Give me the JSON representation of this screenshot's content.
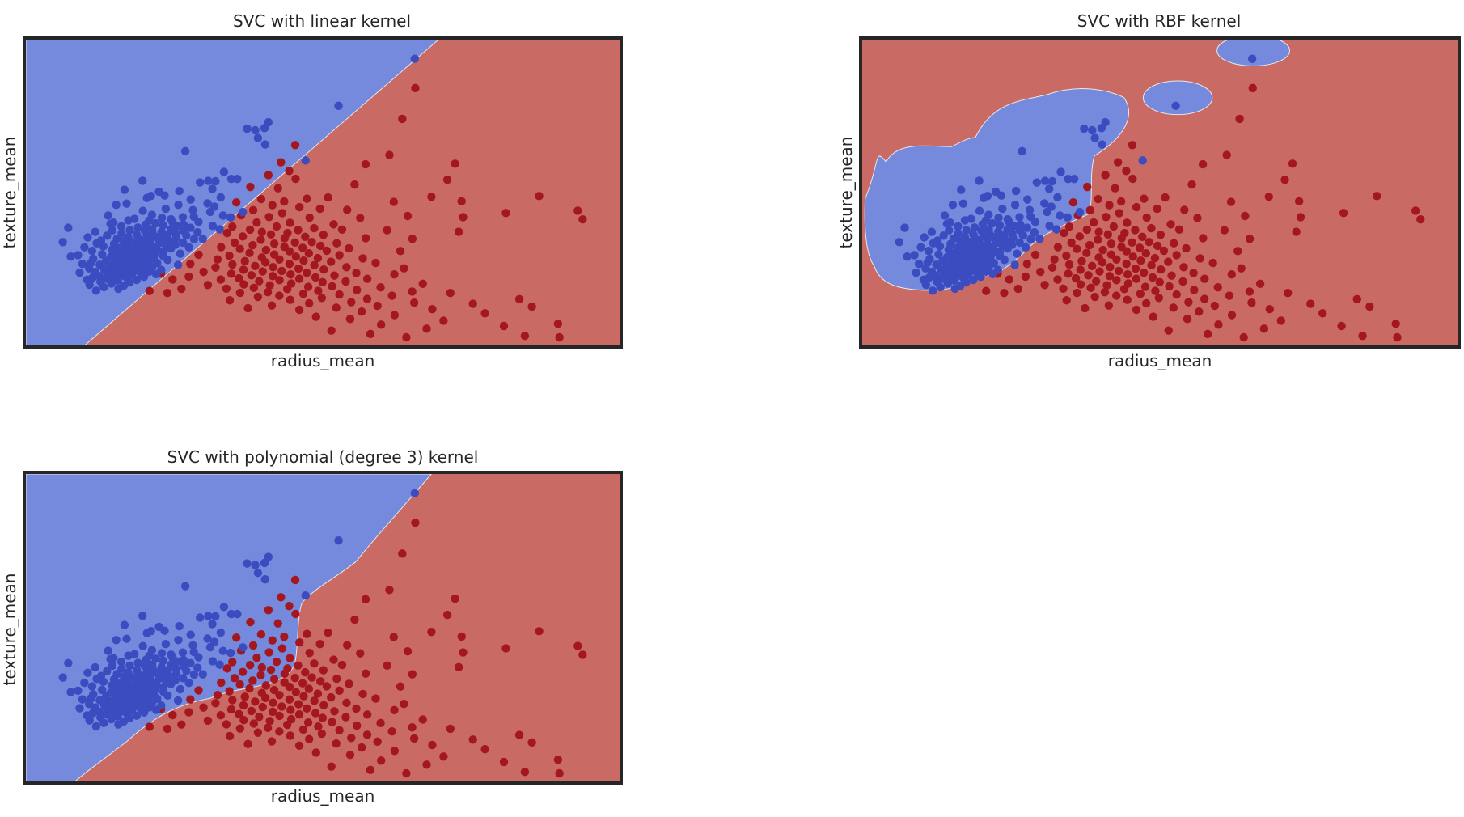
{
  "colors": {
    "blue_region": "#7589dd",
    "red_region": "#c96b64",
    "blue_point": "#3b4cc0",
    "red_point": "#a4171e",
    "frame": "#262626"
  },
  "chart_data": [
    {
      "type": "scatter",
      "title": "SVC with linear kernel",
      "xlabel": "radius_mean",
      "ylabel": "texture_mean",
      "kernel": "linear",
      "grid": false,
      "legend": "none",
      "ticks": "none",
      "regions": "blue-upper-left / red-lower-right, diagonal linear boundary"
    },
    {
      "type": "scatter",
      "title": "SVC with RBF kernel",
      "xlabel": "radius_mean",
      "ylabel": "texture_mean",
      "kernel": "rbf",
      "grid": false,
      "legend": "none",
      "ticks": "none",
      "regions": "red background with three blue islands"
    },
    {
      "type": "scatter",
      "title": "SVC with polynomial (degree 3) kernel",
      "xlabel": "radius_mean",
      "ylabel": "texture_mean",
      "kernel": "poly3",
      "grid": false,
      "legend": "none",
      "ticks": "none",
      "regions": "blue-upper-left / red-lower-right, curved boundary"
    }
  ],
  "points": {
    "blue": [
      [
        0.6594,
        0.0382
      ],
      [
        0.5274,
        0.2006
      ],
      [
        0.3993,
        0.2775
      ],
      [
        0.3831,
        0.2849
      ],
      [
        0.3691,
        0.2795
      ],
      [
        0.4059,
        0.2571
      ],
      [
        0.3878,
        0.3117
      ],
      [
        0.4003,
        0.3339
      ],
      [
        0.2621,
        0.3572
      ],
      [
        0.4702,
        0.3893
      ],
      [
        0.329,
        0.4287
      ],
      [
        0.3521,
        0.453
      ],
      [
        0.3417,
        0.453
      ],
      [
        0.3018,
        0.4598
      ],
      [
        0.2875,
        0.4653
      ],
      [
        0.3142,
        0.4609
      ],
      [
        0.188,
        0.4592
      ],
      [
        0.3089,
        0.4873
      ],
      [
        0.1567,
        0.4906
      ],
      [
        0.2516,
        0.4947
      ],
      [
        0.2165,
        0.4971
      ],
      [
        0.2262,
        0.5102
      ],
      [
        0.2026,
        0.5117
      ],
      [
        0.1956,
        0.5187
      ],
      [
        0.3233,
        0.5167
      ],
      [
        0.2713,
        0.5241
      ],
      [
        0.3006,
        0.5375
      ],
      [
        0.1424,
        0.5424
      ],
      [
        0.1604,
        0.5381
      ],
      [
        0.25,
        0.5425
      ],
      [
        0.2281,
        0.5561
      ],
      [
        0.3053,
        0.5669
      ],
      [
        0.1886,
        0.5632
      ],
      [
        0.2043,
        0.577
      ],
      [
        0.3617,
        0.5674
      ],
      [
        0.1285,
        0.5794
      ],
      [
        0.2769,
        0.5837
      ],
      [
        0.3274,
        0.5796
      ],
      [
        0.2214,
        0.5875
      ],
      [
        0.174,
        0.591
      ],
      [
        0.2577,
        0.5853
      ],
      [
        0.3405,
        0.5862
      ],
      [
        0.1997,
        0.5963
      ],
      [
        0.2373,
        0.5924
      ],
      [
        0.1634,
        0.5961
      ],
      [
        0.2849,
        0.6016
      ],
      [
        0.1377,
        0.6038
      ],
      [
        0.2107,
        0.6064
      ],
      [
        0.259,
        0.6108
      ],
      [
        0.1939,
        0.6101
      ],
      [
        0.2237,
        0.6135
      ],
      [
        0.3094,
        0.615
      ],
      [
        0.2476,
        0.6161
      ],
      [
        0.1514,
        0.6169
      ],
      [
        0.1801,
        0.621
      ],
      [
        0.0593,
        0.6217
      ],
      [
        0.2709,
        0.6218
      ],
      [
        0.2046,
        0.6271
      ],
      [
        0.2369,
        0.6277
      ],
      [
        0.3215,
        0.6271
      ],
      [
        0.1659,
        0.63
      ],
      [
        0.1358,
        0.6303
      ],
      [
        0.2586,
        0.6316
      ],
      [
        0.192,
        0.6325
      ],
      [
        0.2209,
        0.6355
      ],
      [
        0.106,
        0.6361
      ],
      [
        0.2833,
        0.6376
      ],
      [
        0.1517,
        0.6407
      ],
      [
        0.2452,
        0.6411
      ],
      [
        0.2059,
        0.643
      ],
      [
        0.1779,
        0.6449
      ],
      [
        0.2315,
        0.6475
      ],
      [
        0.2638,
        0.6483
      ],
      [
        0.1265,
        0.6491
      ],
      [
        0.1957,
        0.6521
      ],
      [
        0.2127,
        0.6543
      ],
      [
        0.1632,
        0.6544
      ],
      [
        0.0931,
        0.655
      ],
      [
        0.2464,
        0.6572
      ],
      [
        0.1438,
        0.6593
      ],
      [
        0.2236,
        0.6603
      ],
      [
        0.2772,
        0.661
      ],
      [
        0.183,
        0.6618
      ],
      [
        0.202,
        0.6649
      ],
      [
        0.1161,
        0.666
      ],
      [
        0.2349,
        0.6674
      ],
      [
        0.1557,
        0.6682
      ],
      [
        0.1719,
        0.6708
      ],
      [
        0.05,
        0.6712
      ],
      [
        0.2579,
        0.673
      ],
      [
        0.1877,
        0.6737
      ],
      [
        0.217,
        0.6746
      ],
      [
        0.1387,
        0.6776
      ],
      [
        0.1994,
        0.6804
      ],
      [
        0.2446,
        0.6807
      ],
      [
        0.1603,
        0.6806
      ],
      [
        0.2286,
        0.6838
      ],
      [
        0.1201,
        0.6857
      ],
      [
        0.1768,
        0.6865
      ],
      [
        0.2057,
        0.6887
      ],
      [
        0.0873,
        0.6891
      ],
      [
        0.1498,
        0.6909
      ],
      [
        0.2683,
        0.6893
      ],
      [
        0.1895,
        0.6928
      ],
      [
        0.237,
        0.6933
      ],
      [
        0.1644,
        0.6957
      ],
      [
        0.2124,
        0.6965
      ],
      [
        0.1353,
        0.6972
      ],
      [
        0.1812,
        0.6993
      ],
      [
        0.1006,
        0.7015
      ],
      [
        0.2011,
        0.7034
      ],
      [
        0.2237,
        0.7044
      ],
      [
        0.1556,
        0.705
      ],
      [
        0.1705,
        0.707
      ],
      [
        0.1909,
        0.7089
      ],
      [
        0.1421,
        0.7107
      ],
      [
        0.2533,
        0.7111
      ],
      [
        0.2095,
        0.7127
      ],
      [
        0.118,
        0.7137
      ],
      [
        0.1775,
        0.7152
      ],
      [
        0.1606,
        0.7174
      ],
      [
        0.224,
        0.7196
      ],
      [
        0.0637,
        0.7212
      ],
      [
        0.1944,
        0.7216
      ],
      [
        0.133,
        0.7224
      ],
      [
        0.1471,
        0.7253
      ],
      [
        0.2072,
        0.7262
      ],
      [
        0.1712,
        0.7275
      ],
      [
        0.1026,
        0.729
      ],
      [
        0.1855,
        0.7305
      ],
      [
        0.1558,
        0.7322
      ],
      [
        0.2315,
        0.7328
      ],
      [
        0.1995,
        0.7345
      ],
      [
        0.1248,
        0.7364
      ],
      [
        0.1665,
        0.7376
      ],
      [
        0.1403,
        0.7395
      ],
      [
        0.1805,
        0.7414
      ],
      [
        0.2133,
        0.7437
      ],
      [
        0.1524,
        0.7452
      ],
      [
        0.0839,
        0.7462
      ],
      [
        0.1932,
        0.7478
      ],
      [
        0.1139,
        0.749
      ],
      [
        0.1697,
        0.7503
      ],
      [
        0.2494,
        0.7499
      ],
      [
        0.1324,
        0.7526
      ],
      [
        0.1588,
        0.7551
      ],
      [
        0.2047,
        0.7566
      ],
      [
        0.1792,
        0.7576
      ],
      [
        0.1442,
        0.7605
      ],
      [
        0.0955,
        0.762
      ],
      [
        0.1911,
        0.7629
      ],
      [
        0.165,
        0.7644
      ],
      [
        0.1219,
        0.7659
      ],
      [
        0.2203,
        0.7671
      ],
      [
        0.152,
        0.7687
      ],
      [
        0.1752,
        0.7701
      ],
      [
        0.136,
        0.772
      ],
      [
        0.1999,
        0.7734
      ],
      [
        0.1064,
        0.7741
      ],
      [
        0.1617,
        0.7761
      ],
      [
        0.0791,
        0.7766
      ],
      [
        0.1847,
        0.778
      ],
      [
        0.1453,
        0.7795
      ],
      [
        0.1271,
        0.782
      ],
      [
        0.2116,
        0.7818
      ],
      [
        0.1693,
        0.784
      ],
      [
        0.1532,
        0.7866
      ],
      [
        0.1132,
        0.7883
      ],
      [
        0.1385,
        0.7899
      ],
      [
        0.1906,
        0.7911
      ],
      [
        0.1018,
        0.7936
      ],
      [
        0.1608,
        0.7949
      ],
      [
        0.1256,
        0.798
      ],
      [
        0.092,
        0.8013
      ],
      [
        0.1777,
        0.8018
      ],
      [
        0.1452,
        0.8037
      ],
      [
        0.1151,
        0.8076
      ],
      [
        0.1654,
        0.8107
      ],
      [
        0.1339,
        0.8142
      ],
      [
        0.0962,
        0.8185
      ],
      [
        0.1554,
        0.8219
      ],
      [
        0.1209,
        0.8268
      ],
      [
        0.1462,
        0.8321
      ],
      [
        0.1077,
        0.8389
      ],
      [
        0.0987,
        0.7425
      ],
      [
        0.0762,
        0.7163
      ],
      [
        0.2924,
        0.6602
      ],
      [
        0.2752,
        0.5605
      ],
      [
        0.1325,
        0.6082
      ],
      [
        0.1086,
        0.6754
      ],
      [
        0.24,
        0.6031
      ],
      [
        0.3124,
        0.5487
      ]
    ],
    "red": [
      [
        0.6603,
        0.1393
      ],
      [
        0.6377,
        0.2455
      ],
      [
        0.6155,
        0.3703
      ],
      [
        0.4524,
        0.336
      ],
      [
        0.4276,
        0.3954
      ],
      [
        0.4419,
        0.4255
      ],
      [
        0.5742,
        0.4023
      ],
      [
        0.4059,
        0.4397
      ],
      [
        0.453,
        0.4527
      ],
      [
        0.7291,
        0.4002
      ],
      [
        0.8747,
        0.5121
      ],
      [
        0.9416,
        0.5626
      ],
      [
        0.5552,
        0.4723
      ],
      [
        0.3746,
        0.4808
      ],
      [
        0.4226,
        0.4852
      ],
      [
        0.7158,
        0.4557
      ],
      [
        0.6882,
        0.5144
      ],
      [
        0.7405,
        0.5303
      ],
      [
        0.623,
        0.5322
      ],
      [
        0.5092,
        0.517
      ],
      [
        0.4726,
        0.5213
      ],
      [
        0.3934,
        0.5226
      ],
      [
        0.4332,
        0.531
      ],
      [
        0.3504,
        0.534
      ],
      [
        0.4128,
        0.5435
      ],
      [
        0.4597,
        0.5505
      ],
      [
        0.4953,
        0.556
      ],
      [
        0.3796,
        0.5608
      ],
      [
        0.5423,
        0.5598
      ],
      [
        0.8172,
        0.5707
      ],
      [
        0.4298,
        0.571
      ],
      [
        0.9501,
        0.5928
      ],
      [
        0.6471,
        0.581
      ],
      [
        0.3587,
        0.5787
      ],
      [
        0.407,
        0.5846
      ],
      [
        0.4772,
        0.5867
      ],
      [
        0.5648,
        0.588
      ],
      [
        0.743,
        0.585
      ],
      [
        0.3857,
        0.6035
      ],
      [
        0.4432,
        0.6045
      ],
      [
        0.5189,
        0.61
      ],
      [
        0.4202,
        0.6173
      ],
      [
        0.3435,
        0.618
      ],
      [
        0.4852,
        0.6232
      ],
      [
        0.3741,
        0.6283
      ],
      [
        0.4573,
        0.6296
      ],
      [
        0.5335,
        0.6279
      ],
      [
        0.3947,
        0.6362
      ],
      [
        0.6115,
        0.63
      ],
      [
        0.7355,
        0.6356
      ],
      [
        0.439,
        0.6397
      ],
      [
        0.3344,
        0.6399
      ],
      [
        0.4104,
        0.6449
      ],
      [
        0.5012,
        0.6461
      ],
      [
        0.4696,
        0.6531
      ],
      [
        0.3615,
        0.6519
      ],
      [
        0.434,
        0.6579
      ],
      [
        0.5745,
        0.6576
      ],
      [
        0.3928,
        0.6631
      ],
      [
        0.6552,
        0.66
      ],
      [
        0.4812,
        0.6711
      ],
      [
        0.452,
        0.6726
      ],
      [
        0.3473,
        0.6732
      ],
      [
        0.4161,
        0.6764
      ],
      [
        0.5242,
        0.6753
      ],
      [
        0.3787,
        0.6816
      ],
      [
        0.4961,
        0.6843
      ],
      [
        0.4337,
        0.6877
      ],
      [
        0.324,
        0.6886
      ],
      [
        0.4652,
        0.6908
      ],
      [
        0.3567,
        0.6946
      ],
      [
        0.5454,
        0.6926
      ],
      [
        0.4017,
        0.6984
      ],
      [
        0.5069,
        0.7011
      ],
      [
        0.4425,
        0.7031
      ],
      [
        0.6345,
        0.7021
      ],
      [
        0.3733,
        0.7085
      ],
      [
        0.476,
        0.7099
      ],
      [
        0.416,
        0.7142
      ],
      [
        0.285,
        0.715
      ],
      [
        0.5289,
        0.7162
      ],
      [
        0.3384,
        0.7182
      ],
      [
        0.4536,
        0.7215
      ],
      [
        0.3946,
        0.7244
      ],
      [
        0.4915,
        0.7266
      ],
      [
        0.5694,
        0.7276
      ],
      [
        0.3179,
        0.731
      ],
      [
        0.4251,
        0.7313
      ],
      [
        0.467,
        0.7352
      ],
      [
        0.3652,
        0.737
      ],
      [
        0.5143,
        0.739
      ],
      [
        0.4009,
        0.7413
      ],
      [
        0.5917,
        0.7432
      ],
      [
        0.2707,
        0.7463
      ],
      [
        0.4424,
        0.7465
      ],
      [
        0.3436,
        0.7485
      ],
      [
        0.4855,
        0.751
      ],
      [
        0.3829,
        0.7537
      ],
      [
        0.4139,
        0.7575
      ],
      [
        0.5412,
        0.758
      ],
      [
        0.3143,
        0.7591
      ],
      [
        0.4581,
        0.7627
      ],
      [
        0.6406,
        0.7617
      ],
      [
        0.3628,
        0.7666
      ],
      [
        0.5018,
        0.766
      ],
      [
        0.429,
        0.7707
      ],
      [
        0.396,
        0.7724
      ],
      [
        0.2936,
        0.7741
      ],
      [
        0.4724,
        0.7772
      ],
      [
        0.5581,
        0.7778
      ],
      [
        0.3417,
        0.7804
      ],
      [
        0.4444,
        0.7826
      ],
      [
        0.624,
        0.7827
      ],
      [
        0.3765,
        0.7859
      ],
      [
        0.5203,
        0.7869
      ],
      [
        0.4133,
        0.7887
      ],
      [
        0.268,
        0.7902
      ],
      [
        0.4875,
        0.7932
      ],
      [
        0.3549,
        0.7963
      ],
      [
        0.4594,
        0.7978
      ],
      [
        0.3234,
        0.8004
      ],
      [
        0.5772,
        0.798
      ],
      [
        0.4251,
        0.8026
      ],
      [
        0.3899,
        0.8062
      ],
      [
        0.5398,
        0.807
      ],
      [
        0.4997,
        0.8095
      ],
      [
        0.4455,
        0.814
      ],
      [
        0.3633,
        0.8172
      ],
      [
        0.6733,
        0.815
      ],
      [
        0.3011,
        0.8192
      ],
      [
        0.4085,
        0.8203
      ],
      [
        0.5162,
        0.8238
      ],
      [
        0.4749,
        0.8257
      ],
      [
        0.3807,
        0.829
      ],
      [
        0.6002,
        0.8273
      ],
      [
        0.3331,
        0.8318
      ],
      [
        0.4386,
        0.8334
      ],
      [
        0.5591,
        0.8364
      ],
      [
        0.2553,
        0.8325
      ],
      [
        0.4922,
        0.8395
      ],
      [
        0.4049,
        0.8441
      ],
      [
        0.6549,
        0.8421
      ],
      [
        0.3569,
        0.8465
      ],
      [
        0.4663,
        0.8497
      ],
      [
        0.721,
        0.847
      ],
      [
        0.5289,
        0.8522
      ],
      [
        0.4249,
        0.8563
      ],
      [
        0.62,
        0.8562
      ],
      [
        0.231,
        0.847
      ],
      [
        0.3878,
        0.8604
      ],
      [
        0.4984,
        0.864
      ],
      [
        0.577,
        0.8676
      ],
      [
        0.4437,
        0.8706
      ],
      [
        0.339,
        0.8722
      ],
      [
        0.8404,
        0.8682
      ],
      [
        0.5494,
        0.8786
      ],
      [
        0.6584,
        0.8803
      ],
      [
        0.4765,
        0.8824
      ],
      [
        0.7601,
        0.8842
      ],
      [
        0.4118,
        0.8903
      ],
      [
        0.5948,
        0.8913
      ],
      [
        0.8622,
        0.8941
      ],
      [
        0.5234,
        0.8977
      ],
      [
        0.3706,
        0.8995
      ],
      [
        0.6897,
        0.9028
      ],
      [
        0.4595,
        0.905
      ],
      [
        0.5675,
        0.9113
      ],
      [
        0.781,
        0.9172
      ],
      [
        0.6244,
        0.9232
      ],
      [
        0.4885,
        0.929
      ],
      [
        0.5475,
        0.9367
      ],
      [
        0.7092,
        0.9425
      ],
      [
        0.9074,
        0.9532
      ],
      [
        0.6011,
        0.9563
      ],
      [
        0.8137,
        0.9609
      ],
      [
        0.68,
        0.9702
      ],
      [
        0.515,
        0.9769
      ],
      [
        0.5826,
        0.9885
      ],
      [
        0.6448,
        1.0
      ],
      [
        0.85,
        0.995
      ],
      [
        0.9099,
        1.0
      ],
      [
        0.22,
        0.78
      ],
      [
        0.2,
        0.84
      ],
      [
        0.24,
        0.8
      ]
    ]
  }
}
